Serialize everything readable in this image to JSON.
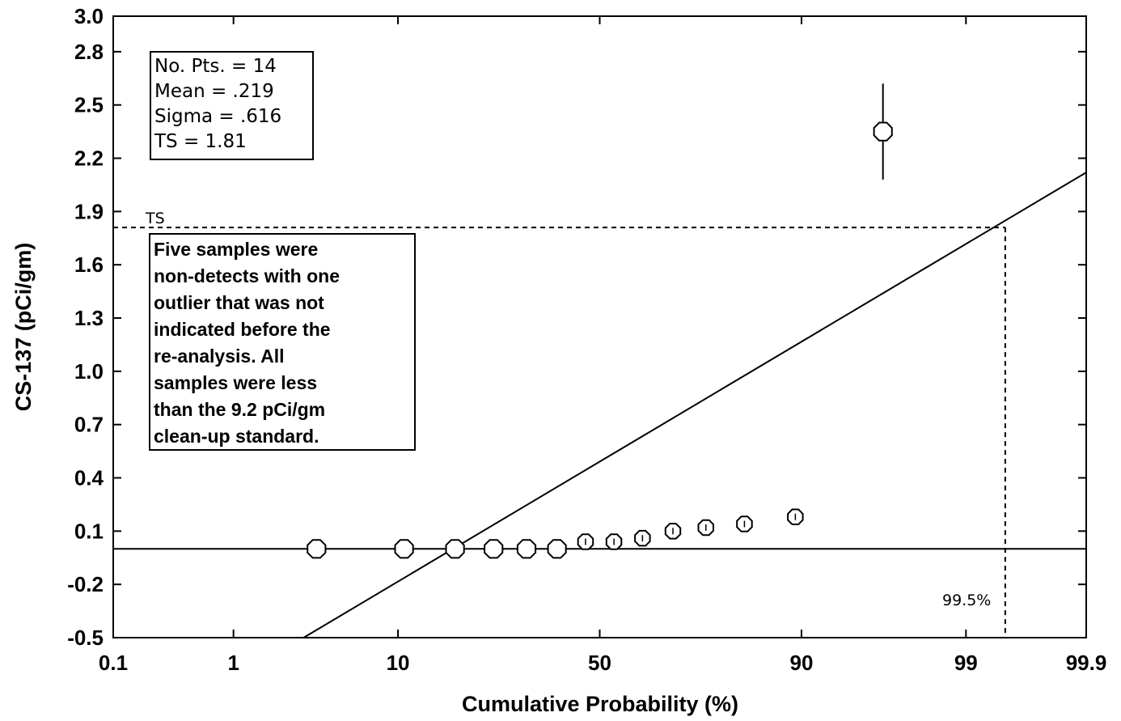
{
  "chart_data": {
    "type": "scatter",
    "xlabel": "Cumulative Probability (%)",
    "ylabel": "CS-137 (pCi/gm)",
    "x_scale": "normal-probability",
    "x_ticks": [
      "0.1",
      "1",
      "10",
      "50",
      "90",
      "99",
      "99.9"
    ],
    "y_ticks": [
      "3.0",
      "2.8",
      "2.5",
      "2.2",
      "1.9",
      "1.6",
      "1.3",
      "1.0",
      "0.7",
      "0.4",
      "0.1",
      "-0.2",
      "-0.5"
    ],
    "ylim": [
      -0.5,
      3.0
    ],
    "xlim": [
      0.1,
      99.9
    ],
    "points": [
      {
        "x": 3.6,
        "y": 0.0
      },
      {
        "x": 10.7,
        "y": 0.0
      },
      {
        "x": 17.9,
        "y": 0.0
      },
      {
        "x": 25.0,
        "y": 0.0
      },
      {
        "x": 32.1,
        "y": 0.0
      },
      {
        "x": 39.3,
        "y": 0.0
      },
      {
        "x": 46.4,
        "y": 0.04
      },
      {
        "x": 53.6,
        "y": 0.04
      },
      {
        "x": 60.7,
        "y": 0.06
      },
      {
        "x": 67.9,
        "y": 0.1
      },
      {
        "x": 75.0,
        "y": 0.12
      },
      {
        "x": 82.1,
        "y": 0.14
      },
      {
        "x": 89.3,
        "y": 0.18
      },
      {
        "x": 96.4,
        "y": 2.35
      }
    ],
    "fit_line": {
      "x": [
        3.0,
        99.9
      ],
      "y": [
        -0.5,
        2.12
      ]
    },
    "ts_value": 1.81,
    "ts_label": "TS",
    "ts_probability": 99.5,
    "ts_probability_label": "99.5%",
    "stats": {
      "line1": "No. Pts. =  14",
      "line2": "Mean =  .219",
      "line3": "Sigma =  .616",
      "line4": "TS =  1.81"
    },
    "note": [
      "Five samples were",
      "non-detects with one",
      "outlier that was not",
      "indicated before the",
      "re-analysis. All",
      "samples were less",
      "than the 9.2 pCi/gm",
      "clean-up standard."
    ]
  }
}
